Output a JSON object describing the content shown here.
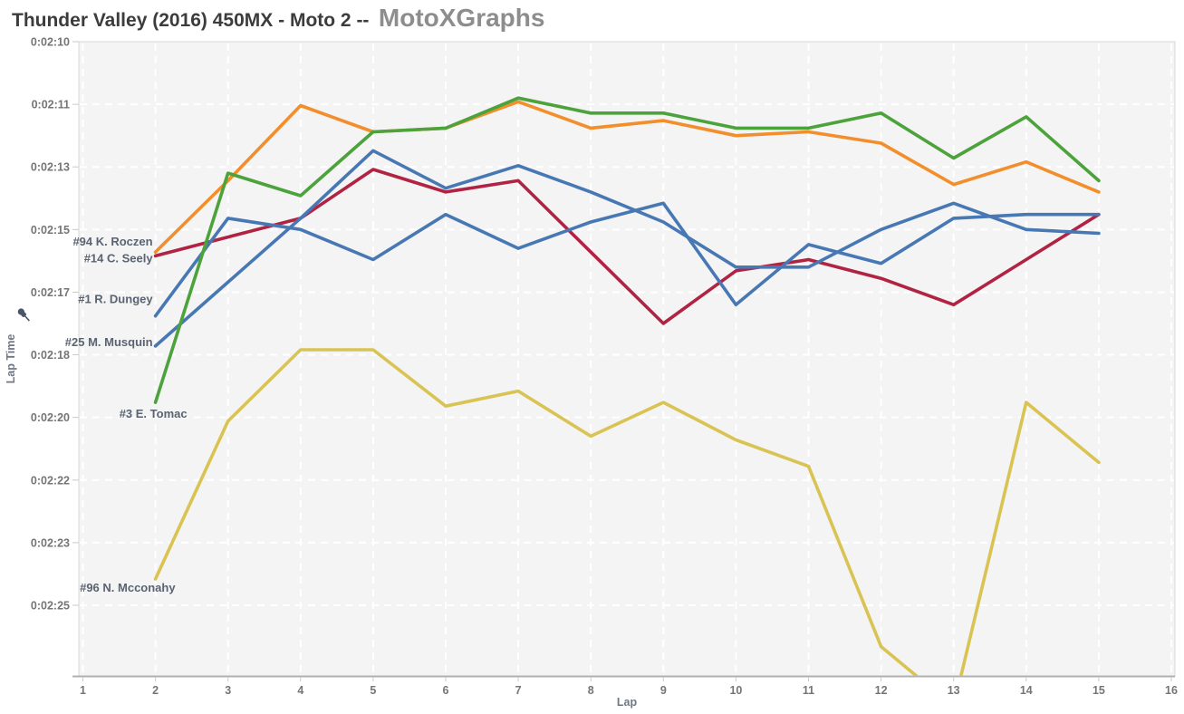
{
  "title": {
    "main": "Thunder Valley (2016) 450MX - Moto 2 --",
    "brand": "MotoXGraphs"
  },
  "colors": {
    "plot_background": "#f4f4f4",
    "gridline": "#ffffff",
    "axis_border": "#d8d8d8",
    "axis_bottom_line": "#b0b0b0",
    "tick_label": "#757575",
    "axis_title": "#6f7785",
    "rider_label": "#5a6372",
    "pin_icon": "#4a5568"
  },
  "chart_data": {
    "type": "line",
    "title": "Thunder Valley (2016) 450MX - Moto 2 -- MotoXGraphs",
    "xlabel": "Lap",
    "ylabel": "Lap Time",
    "grid": true,
    "x_range": [
      1,
      16
    ],
    "x_ticks": [
      "1",
      "2",
      "3",
      "4",
      "5",
      "6",
      "7",
      "8",
      "9",
      "10",
      "11",
      "12",
      "13",
      "14",
      "15",
      "16"
    ],
    "y_axis_note": "lap time in seconds, faster (lower) values at top",
    "y_tick_labels": [
      "0:02:10",
      "0:02:11",
      "0:02:13",
      "0:02:15",
      "0:02:17",
      "0:02:18",
      "0:02:20",
      "0:02:22",
      "0:02:23",
      "0:02:25"
    ],
    "y_tick_values_seconds": [
      130,
      131.667,
      133.333,
      135,
      136.667,
      138.333,
      140,
      141.667,
      143.333,
      145
    ],
    "laps_start": 2,
    "series": [
      {
        "label": "#94 K. Roczen",
        "number": "94",
        "rider": "K. Roczen",
        "color": "#f28e2b",
        "lap_time_seconds": [
          135.6,
          133.7,
          131.7,
          132.4,
          132.3,
          131.6,
          132.3,
          132.1,
          132.5,
          132.4,
          132.7,
          133.8,
          133.2,
          134.0
        ]
      },
      {
        "label": "#14 C. Seely",
        "number": "14",
        "rider": "C. Seely",
        "color": "#b12343",
        "lap_time_seconds": [
          135.7,
          135.2,
          134.7,
          133.4,
          134.0,
          133.7,
          135.6,
          137.5,
          136.1,
          135.8,
          136.3,
          137.0,
          135.8,
          134.6
        ]
      },
      {
        "label": "#1 R. Dungey",
        "number": "1",
        "rider": "R. Dungey",
        "color": "#4878b4",
        "lap_time_seconds": [
          137.3,
          134.7,
          135.0,
          135.8,
          134.6,
          135.5,
          134.8,
          134.3,
          137.0,
          135.4,
          135.9,
          134.7,
          134.6,
          134.6
        ]
      },
      {
        "label": "#25 M. Musquin",
        "number": "25",
        "rider": "M. Musquin",
        "color": "#4878b4",
        "lap_time_seconds": [
          138.1,
          136.4,
          134.7,
          132.9,
          133.9,
          133.3,
          134.0,
          134.8,
          136.0,
          136.0,
          135.0,
          134.3,
          135.0,
          135.1
        ]
      },
      {
        "label": "#3 E. Tomac",
        "number": "3",
        "rider": "E. Tomac",
        "color": "#4ca23b",
        "lap_time_seconds": [
          139.6,
          133.5,
          134.1,
          132.4,
          132.3,
          131.5,
          131.9,
          131.9,
          132.3,
          132.3,
          131.9,
          133.1,
          132.0,
          133.7
        ]
      },
      {
        "label": "#96 N. Mcconahy",
        "number": "96",
        "rider": "N. Mcconahy",
        "color": "#d9c353",
        "lap_time_seconds": [
          144.3,
          140.1,
          138.2,
          138.2,
          139.7,
          139.3,
          140.5,
          139.6,
          140.6,
          141.3,
          146.1,
          147.7,
          139.6,
          141.2
        ]
      }
    ]
  }
}
